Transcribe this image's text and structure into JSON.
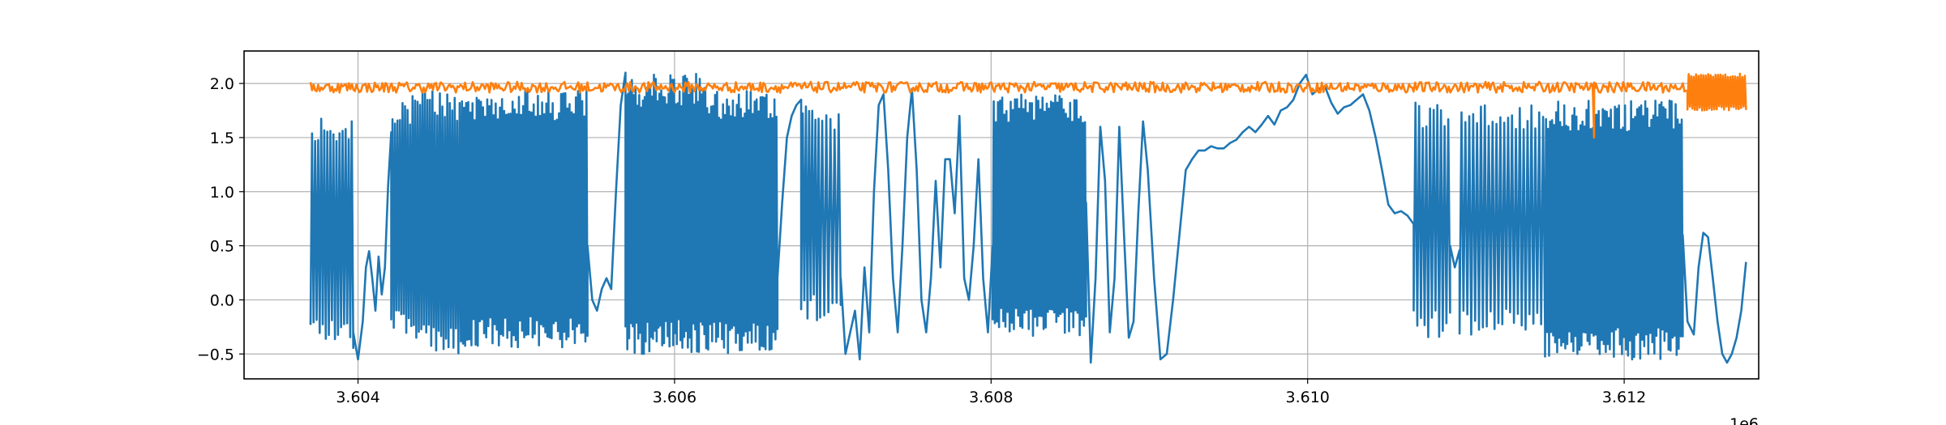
{
  "chart_data": {
    "type": "line",
    "title": "",
    "xlabel": "",
    "ylabel": "",
    "x_offset_label": "1e6",
    "xlim": [
      3.60328,
      3.61285
    ],
    "ylim": [
      -0.73,
      2.3
    ],
    "x_ticks": [
      3.604,
      3.606,
      3.608,
      3.61,
      3.612
    ],
    "x_tick_labels": [
      "3.604",
      "3.606",
      "3.608",
      "3.610",
      "3.612"
    ],
    "y_ticks": [
      -0.5,
      0.0,
      0.5,
      1.0,
      1.5,
      2.0
    ],
    "y_tick_labels": [
      "−0.5",
      "0.0",
      "0.5",
      "1.0",
      "1.5",
      "2.0"
    ],
    "grid": true,
    "legend": "none",
    "series": [
      {
        "color": "#1f77b4",
        "segments": [
          {
            "type": "osc",
            "x0": 3.6037,
            "x1": 3.60397,
            "lo": -0.45,
            "hi": 1.72,
            "n": 14
          },
          {
            "type": "points",
            "pts": [
              [
                3.60397,
                -0.3
              ],
              [
                3.604,
                -0.55
              ],
              [
                3.60403,
                -0.2
              ],
              [
                3.60405,
                0.3
              ],
              [
                3.60407,
                0.45
              ],
              [
                3.60409,
                0.2
              ],
              [
                3.60411,
                -0.1
              ],
              [
                3.60413,
                0.4
              ],
              [
                3.60415,
                0.05
              ],
              [
                3.60417,
                0.3
              ],
              [
                3.60419,
                1.05
              ],
              [
                3.60421,
                1.55
              ]
            ]
          },
          {
            "type": "osc",
            "x0": 3.60421,
            "x1": 3.6044,
            "lo": -0.35,
            "hi": 1.9,
            "n": 12
          },
          {
            "type": "osc",
            "x0": 3.6044,
            "x1": 3.60465,
            "lo": -0.5,
            "hi": 1.95,
            "n": 16
          },
          {
            "type": "osc",
            "x0": 3.60465,
            "x1": 3.60545,
            "lo": -0.45,
            "hi": 1.95,
            "n": 60
          },
          {
            "type": "points",
            "pts": [
              [
                3.60545,
                0.5
              ],
              [
                3.60548,
                0.0
              ],
              [
                3.60551,
                -0.1
              ],
              [
                3.60554,
                0.1
              ],
              [
                3.60557,
                0.2
              ],
              [
                3.6056,
                0.1
              ],
              [
                3.60563,
                1.0
              ],
              [
                3.60566,
                1.8
              ],
              [
                3.60569,
                2.1
              ]
            ]
          },
          {
            "type": "osc",
            "x0": 3.60569,
            "x1": 3.6062,
            "lo": -0.5,
            "hi": 2.1,
            "n": 44
          },
          {
            "type": "osc",
            "x0": 3.6062,
            "x1": 3.60665,
            "lo": -0.5,
            "hi": 1.95,
            "n": 36
          },
          {
            "type": "points",
            "pts": [
              [
                3.60665,
                0.2
              ],
              [
                3.60668,
                0.9
              ],
              [
                3.60671,
                1.5
              ],
              [
                3.60674,
                1.7
              ],
              [
                3.60677,
                1.8
              ],
              [
                3.6068,
                1.85
              ]
            ]
          },
          {
            "type": "osc",
            "x0": 3.6068,
            "x1": 3.60692,
            "lo": -0.2,
            "hi": 1.85,
            "n": 6
          },
          {
            "type": "osc",
            "x0": 3.60692,
            "x1": 3.60705,
            "lo": -0.15,
            "hi": 1.8,
            "n": 5
          },
          {
            "type": "points",
            "pts": [
              [
                3.60705,
                0.2
              ],
              [
                3.60708,
                -0.5
              ],
              [
                3.60711,
                -0.3
              ],
              [
                3.60714,
                -0.1
              ],
              [
                3.60717,
                -0.55
              ],
              [
                3.6072,
                0.3
              ],
              [
                3.60723,
                -0.3
              ],
              [
                3.60726,
                1.0
              ],
              [
                3.60729,
                1.8
              ],
              [
                3.60732,
                1.9
              ],
              [
                3.60735,
                1.2
              ],
              [
                3.60738,
                0.2
              ],
              [
                3.60741,
                -0.3
              ],
              [
                3.60744,
                0.5
              ],
              [
                3.60747,
                1.5
              ],
              [
                3.6075,
                1.95
              ],
              [
                3.60753,
                1.2
              ],
              [
                3.60756,
                0.0
              ],
              [
                3.60759,
                -0.3
              ],
              [
                3.60762,
                0.2
              ],
              [
                3.60765,
                1.1
              ],
              [
                3.60768,
                0.3
              ],
              [
                3.60771,
                1.3
              ],
              [
                3.60774,
                1.3
              ],
              [
                3.60777,
                0.8
              ],
              [
                3.6078,
                1.7
              ],
              [
                3.60783,
                0.2
              ],
              [
                3.60786,
                -0.0
              ],
              [
                3.60789,
                0.5
              ],
              [
                3.60792,
                1.3
              ],
              [
                3.60795,
                0.2
              ],
              [
                3.60798,
                -0.3
              ],
              [
                3.60801,
                0.5
              ]
            ]
          },
          {
            "type": "osc",
            "x0": 3.60801,
            "x1": 3.6086,
            "lo": -0.35,
            "hi": 1.9,
            "n": 44
          },
          {
            "type": "points",
            "pts": [
              [
                3.6086,
                0.9
              ],
              [
                3.60863,
                -0.58
              ],
              [
                3.60866,
                0.2
              ],
              [
                3.60869,
                1.6
              ],
              [
                3.60872,
                1.1
              ],
              [
                3.60875,
                -0.3
              ],
              [
                3.60878,
                0.2
              ],
              [
                3.60881,
                1.6
              ],
              [
                3.60884,
                0.6
              ],
              [
                3.60887,
                -0.35
              ],
              [
                3.6089,
                -0.2
              ],
              [
                3.60893,
                0.8
              ],
              [
                3.60896,
                1.65
              ],
              [
                3.60899,
                1.2
              ],
              [
                3.60903,
                0.2
              ],
              [
                3.60907,
                -0.55
              ],
              [
                3.60911,
                -0.5
              ],
              [
                3.60915,
                0.0
              ],
              [
                3.60919,
                0.6
              ],
              [
                3.60923,
                1.2
              ],
              [
                3.60927,
                1.3
              ],
              [
                3.60931,
                1.38
              ],
              [
                3.60935,
                1.38
              ],
              [
                3.60939,
                1.42
              ],
              [
                3.60943,
                1.4
              ],
              [
                3.60947,
                1.4
              ],
              [
                3.60951,
                1.45
              ],
              [
                3.60955,
                1.48
              ],
              [
                3.60959,
                1.55
              ],
              [
                3.60963,
                1.6
              ],
              [
                3.60967,
                1.55
              ],
              [
                3.60971,
                1.62
              ],
              [
                3.60975,
                1.7
              ],
              [
                3.60979,
                1.62
              ],
              [
                3.60983,
                1.75
              ],
              [
                3.60987,
                1.78
              ],
              [
                3.60991,
                1.85
              ],
              [
                3.60995,
                2.0
              ],
              [
                3.60999,
                2.08
              ],
              [
                3.61003,
                1.9
              ],
              [
                3.61007,
                1.95
              ],
              [
                3.61011,
                1.97
              ],
              [
                3.61015,
                1.82
              ],
              [
                3.61019,
                1.72
              ],
              [
                3.61023,
                1.78
              ],
              [
                3.61027,
                1.8
              ],
              [
                3.61031,
                1.85
              ],
              [
                3.61035,
                1.9
              ],
              [
                3.61039,
                1.75
              ],
              [
                3.61043,
                1.5
              ],
              [
                3.61047,
                1.2
              ],
              [
                3.61051,
                0.88
              ],
              [
                3.61055,
                0.8
              ],
              [
                3.61059,
                0.82
              ],
              [
                3.61063,
                0.78
              ],
              [
                3.61067,
                0.7
              ]
            ]
          },
          {
            "type": "osc",
            "x0": 3.61067,
            "x1": 3.6109,
            "lo": -0.35,
            "hi": 1.85,
            "n": 10
          },
          {
            "type": "points",
            "pts": [
              [
                3.6109,
                0.5
              ],
              [
                3.61093,
                0.3
              ],
              [
                3.61096,
                0.46
              ]
            ]
          },
          {
            "type": "osc",
            "x0": 3.61096,
            "x1": 3.6115,
            "lo": -0.35,
            "hi": 1.8,
            "n": 22
          },
          {
            "type": "osc",
            "x0": 3.6115,
            "x1": 3.61237,
            "lo": -0.55,
            "hi": 1.85,
            "n": 68
          },
          {
            "type": "points",
            "pts": [
              [
                3.61237,
                0.6
              ],
              [
                3.6124,
                -0.2
              ],
              [
                3.61244,
                -0.32
              ],
              [
                3.61247,
                0.3
              ],
              [
                3.6125,
                0.62
              ],
              [
                3.61253,
                0.58
              ],
              [
                3.61256,
                0.2
              ],
              [
                3.61259,
                -0.2
              ],
              [
                3.61262,
                -0.5
              ],
              [
                3.61265,
                -0.58
              ],
              [
                3.61268,
                -0.5
              ],
              [
                3.61271,
                -0.35
              ],
              [
                3.61274,
                -0.1
              ],
              [
                3.61277,
                0.35
              ]
            ]
          }
        ]
      },
      {
        "color": "#ff7f0e",
        "segments": [
          {
            "type": "noise",
            "x0": 3.6037,
            "x1": 3.6124,
            "center": 1.965,
            "amp": 0.05,
            "n": 900
          },
          {
            "type": "points",
            "pts": [
              [
                3.6118,
                1.97
              ],
              [
                3.61181,
                1.5
              ],
              [
                3.61182,
                1.96
              ]
            ]
          },
          {
            "type": "osc",
            "x0": 3.6124,
            "x1": 3.61277,
            "lo": 1.75,
            "hi": 2.1,
            "n": 24
          }
        ]
      }
    ]
  }
}
